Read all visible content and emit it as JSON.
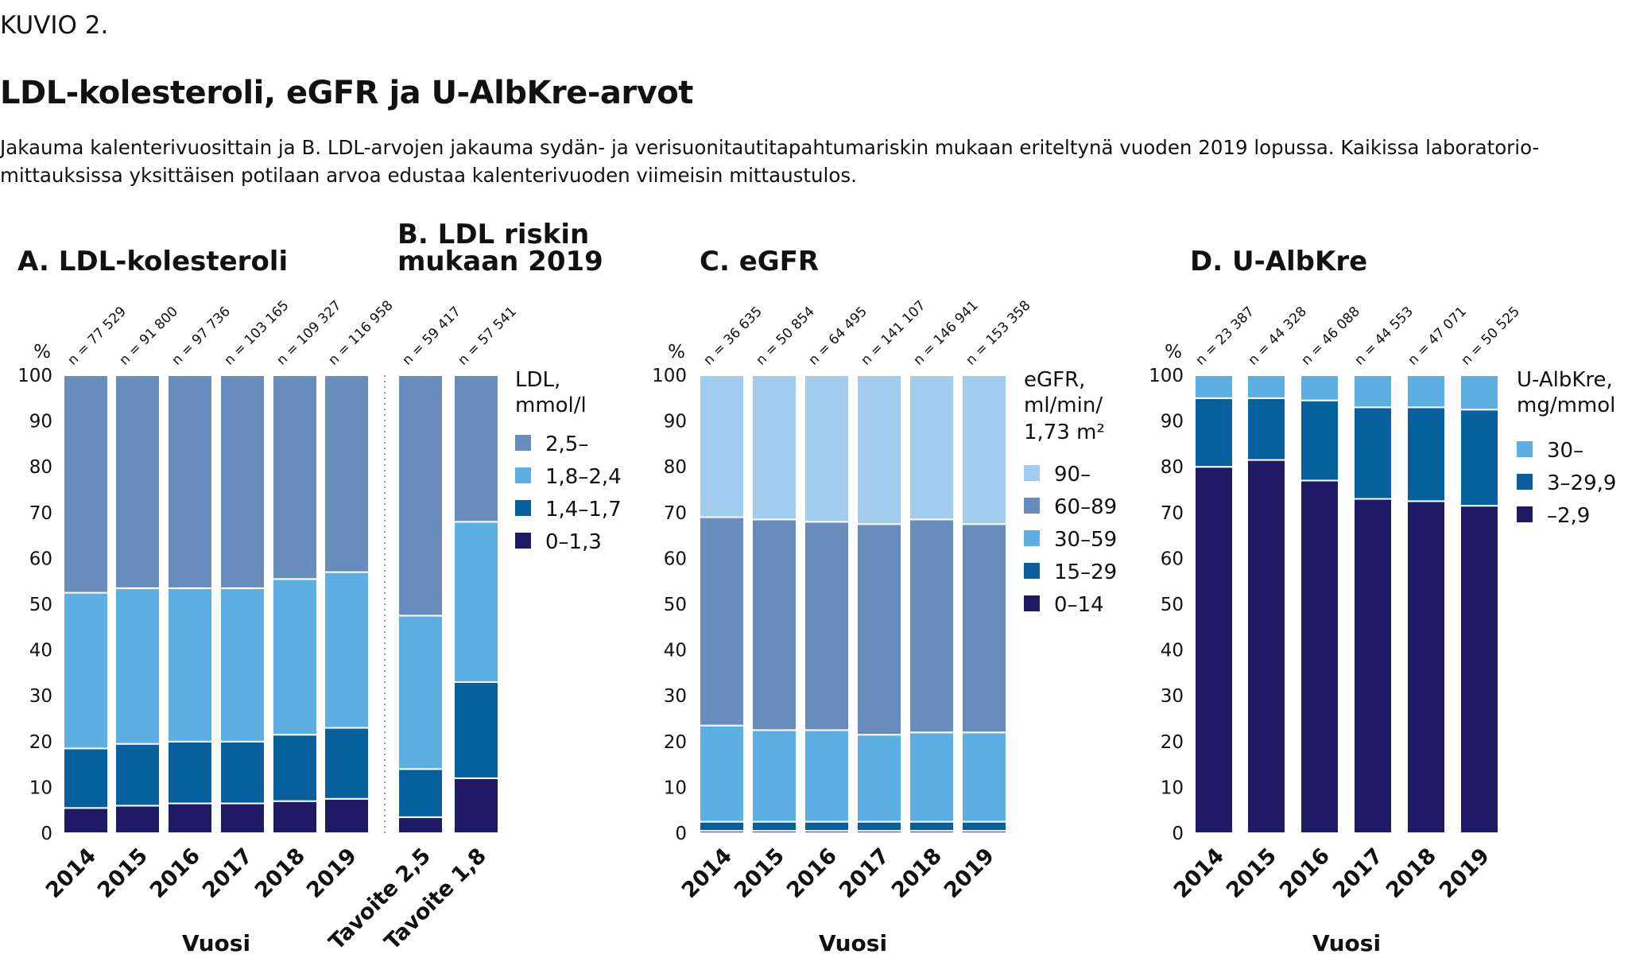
{
  "header": {
    "kuvio": "KUVIO 2.",
    "title": "LDL-kolesteroli, eGFR ja U-AlbKre-arvot",
    "description": "Jakauma kalenterivuosittain ja B. LDL-arvojen jakauma sydän- ja verisuonitautitapahtumariskin mukaan eriteltynä vuoden 2019 lopussa. Kaikissa laboratorio-mittauksissa yksittäisen potilaan arvoa edustaa kalenterivuoden viimeisin mittaustulos."
  },
  "colors": {
    "darkest": "#1e1a66",
    "dark": "#07609e",
    "light": "#5daee3",
    "slate": "#6a8cbd",
    "pale": "#a3cdee"
  },
  "chart_data": [
    {
      "id": "A",
      "type": "bar",
      "stacked": true,
      "title": "A. LDL-kolesteroli",
      "ylabel": "%",
      "xlabel": "Vuosi",
      "ylim": [
        0,
        100
      ],
      "yticks": [
        0,
        10,
        20,
        30,
        40,
        50,
        60,
        70,
        80,
        90,
        100
      ],
      "categories": [
        "2014",
        "2015",
        "2016",
        "2017",
        "2018",
        "2019"
      ],
      "n": [
        "n = 77 529",
        "n = 91 800",
        "n = 97 736",
        "n = 103 165",
        "n = 109 327",
        "n = 116 958"
      ],
      "legend_title": [
        "LDL,",
        "mmol/l"
      ],
      "series": [
        {
          "name": "0–1,3",
          "color": "#1e1a66",
          "values": [
            5.5,
            6,
            6.5,
            6.5,
            7,
            7.5
          ]
        },
        {
          "name": "1,4–1,7",
          "color": "#07609e",
          "values": [
            13,
            13.5,
            13.5,
            13.5,
            14.5,
            15.5
          ]
        },
        {
          "name": "1,8–2,4",
          "color": "#5daee3",
          "values": [
            34,
            34,
            33.5,
            33.5,
            34,
            34
          ]
        },
        {
          "name": "2,5–",
          "color": "#6a8cbd",
          "values": [
            47.5,
            46.5,
            46.5,
            46.5,
            44.5,
            43
          ]
        }
      ]
    },
    {
      "id": "B",
      "type": "bar",
      "stacked": true,
      "title": [
        "B. LDL riskin",
        "mukaan 2019"
      ],
      "ylim": [
        0,
        100
      ],
      "categories": [
        "Tavoite 2,5",
        "Tavoite 1,8"
      ],
      "n": [
        "n = 59 417",
        "n = 57 541"
      ],
      "series": [
        {
          "name": "0–1,3",
          "color": "#1e1a66",
          "values": [
            3.5,
            12
          ]
        },
        {
          "name": "1,4–1,7",
          "color": "#07609e",
          "values": [
            10.5,
            21
          ]
        },
        {
          "name": "1,8–2,4",
          "color": "#5daee3",
          "values": [
            33.5,
            35
          ]
        },
        {
          "name": "2,5–",
          "color": "#6a8cbd",
          "values": [
            52.5,
            32
          ]
        }
      ]
    },
    {
      "id": "C",
      "type": "bar",
      "stacked": true,
      "title": "C. eGFR",
      "ylabel": "%",
      "xlabel": "Vuosi",
      "ylim": [
        0,
        100
      ],
      "yticks": [
        0,
        10,
        20,
        30,
        40,
        50,
        60,
        70,
        80,
        90,
        100
      ],
      "categories": [
        "2014",
        "2015",
        "2016",
        "2017",
        "2018",
        "2019"
      ],
      "n": [
        "n = 36 635",
        "n = 50 854",
        "n = 64 495",
        "n = 141 107",
        "n = 146 941",
        "n = 153 358"
      ],
      "legend_title": [
        "eGFR,",
        "ml/min/",
        "1,73 m²"
      ],
      "series": [
        {
          "name": "0–14",
          "color": "#1e1a66",
          "values": [
            0.5,
            0.5,
            0.5,
            0.5,
            0.5,
            0.5
          ]
        },
        {
          "name": "15–29",
          "color": "#07609e",
          "values": [
            2,
            2,
            2,
            2,
            2,
            2
          ]
        },
        {
          "name": "30–59",
          "color": "#5daee3",
          "values": [
            21,
            20,
            20,
            19,
            19.5,
            19.5
          ]
        },
        {
          "name": "60–89",
          "color": "#6a8cbd",
          "values": [
            45.5,
            46,
            45.5,
            46,
            46.5,
            45.5
          ]
        },
        {
          "name": "90–",
          "color": "#a3cdee",
          "values": [
            31,
            31.5,
            32,
            32.5,
            31.5,
            32.5
          ]
        }
      ]
    },
    {
      "id": "D",
      "type": "bar",
      "stacked": true,
      "title": "D. U-AlbKre",
      "ylabel": "%",
      "xlabel": "Vuosi",
      "ylim": [
        0,
        100
      ],
      "yticks": [
        0,
        10,
        20,
        30,
        40,
        50,
        60,
        70,
        80,
        90,
        100
      ],
      "categories": [
        "2014",
        "2015",
        "2016",
        "2017",
        "2018",
        "2019"
      ],
      "n": [
        "n = 23 387",
        "n = 44 328",
        "n = 46 088",
        "n = 44 553",
        "n = 47 071",
        "n = 50 525"
      ],
      "legend_title": [
        "U-AlbKre,",
        "mg/mmol"
      ],
      "series": [
        {
          "name": "–2,9",
          "color": "#1e1a66",
          "values": [
            80,
            81.5,
            77,
            73,
            72.5,
            71.5
          ]
        },
        {
          "name": "3–29,9",
          "color": "#07609e",
          "values": [
            15,
            13.5,
            17.5,
            20,
            20.5,
            21
          ]
        },
        {
          "name": "30–",
          "color": "#5daee3",
          "values": [
            5,
            5,
            5.5,
            7,
            7,
            7.5
          ]
        }
      ]
    }
  ]
}
